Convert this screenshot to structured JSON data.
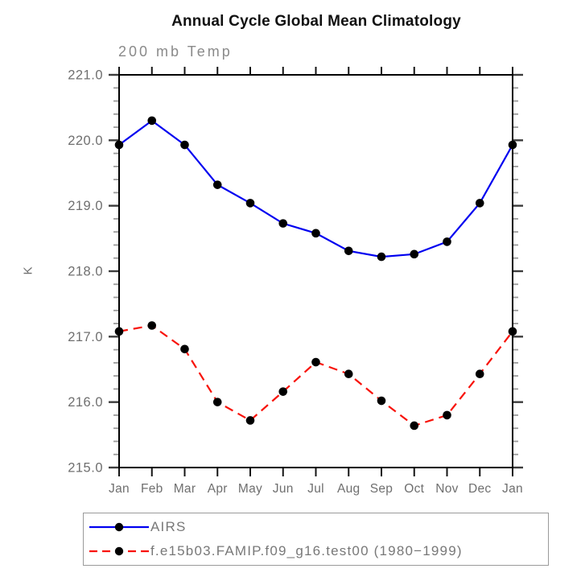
{
  "chart_data": {
    "type": "line",
    "title": "Annual Cycle Global Mean Climatology",
    "subtitle": "200 mb Temp",
    "ylabel": "K",
    "xlabel": "",
    "categories": [
      "Jan",
      "Feb",
      "Mar",
      "Apr",
      "May",
      "Jun",
      "Jul",
      "Aug",
      "Sep",
      "Oct",
      "Nov",
      "Dec",
      "Jan"
    ],
    "series": [
      {
        "name": "AIRS",
        "line_style": "solid",
        "line_color": "#0000f0",
        "marker": "circle",
        "marker_color": "#000000",
        "values": [
          219.93,
          220.3,
          219.93,
          219.32,
          219.04,
          218.73,
          218.58,
          218.31,
          218.22,
          218.26,
          218.45,
          219.04,
          219.93
        ]
      },
      {
        "name": "f.e15b03.FAMIP.f09_g16.test00 (1980−1999)",
        "line_style": "dashed",
        "line_color": "#f81209",
        "marker": "circle",
        "marker_color": "#000000",
        "values": [
          217.08,
          217.17,
          216.81,
          216.0,
          215.72,
          216.16,
          216.61,
          216.43,
          216.02,
          215.64,
          215.8,
          216.43,
          217.08
        ]
      }
    ],
    "ylim": [
      215.0,
      221.0
    ],
    "ytick_interval": 1.0,
    "ytick_minor_interval": 0.2,
    "ytick_labels": [
      "215.0",
      "216.0",
      "217.0",
      "218.0",
      "219.0",
      "220.0",
      "221.0"
    ],
    "grid": false,
    "legend_position": "bottom-left"
  },
  "colors": {
    "axis": "#000000",
    "major_tick": "#3c3c3c",
    "minor_tick": "#9b9b9b",
    "x_tick": "#141414",
    "tick_label": "#6f6f6f",
    "title": "#111111",
    "subtitle": "#8a8a8a",
    "legend_text": "#787878",
    "legend_border": "#9a9a9a"
  }
}
